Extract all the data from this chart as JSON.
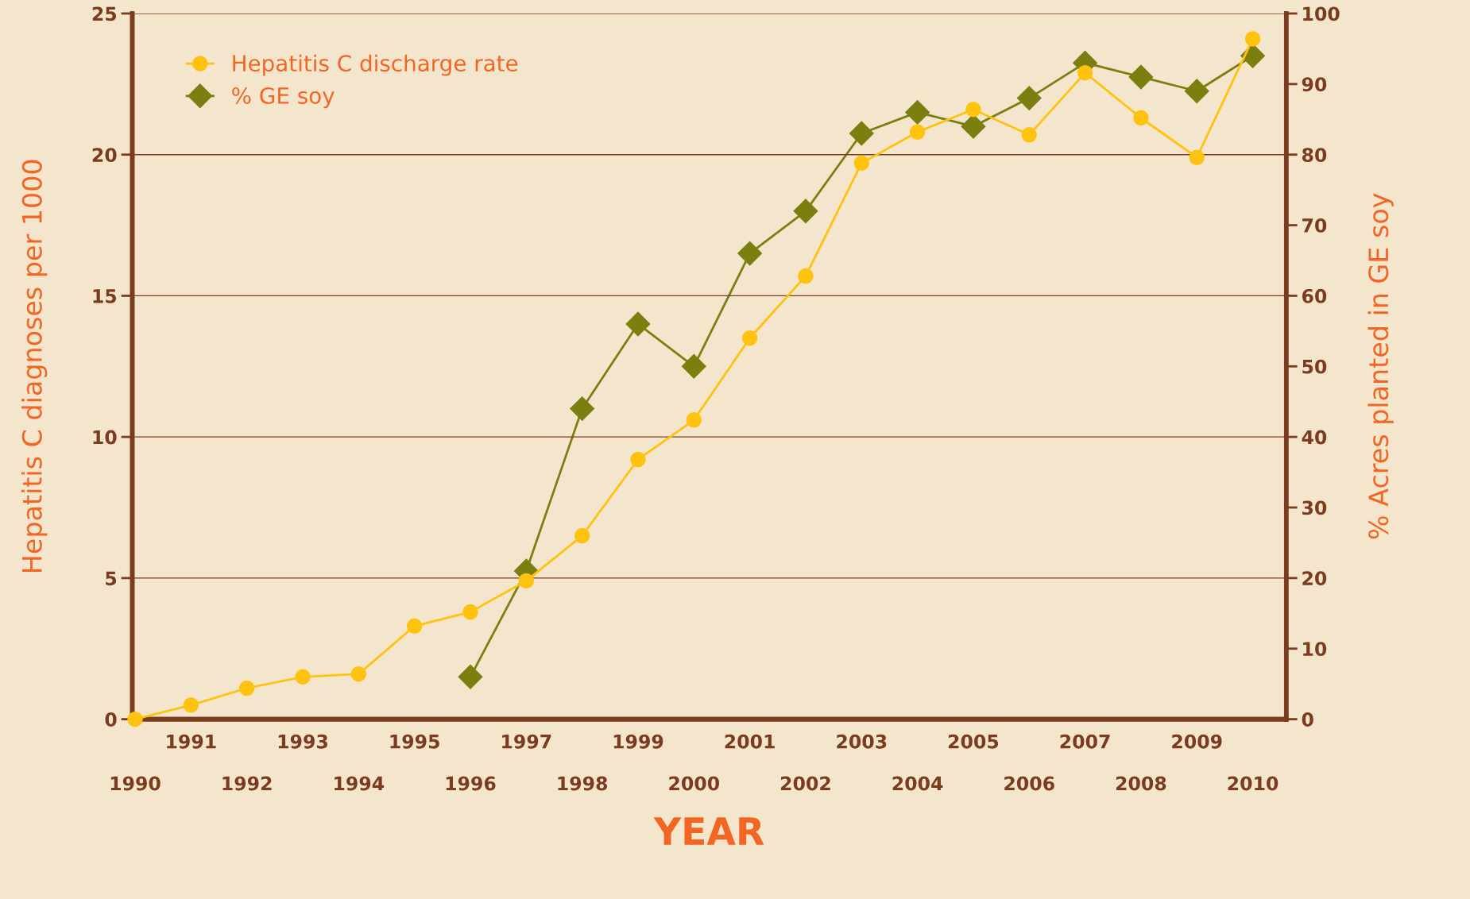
{
  "chart_data": {
    "type": "line",
    "xlabel": "YEAR",
    "ylabel": "Hepatitis C diagnoses per 1000",
    "y2label": "% Acres planted in GE soy",
    "categories": [
      "1990",
      "1991",
      "1992",
      "1993",
      "1994",
      "1995",
      "1996",
      "1997",
      "1998",
      "1999",
      "2000",
      "2001",
      "2002",
      "2003",
      "2004",
      "2005",
      "2006",
      "2007",
      "2008",
      "2009",
      "2010"
    ],
    "series": [
      {
        "name": "Hepatitis C discharge rate",
        "color": "#ffc20e",
        "marker": "circle",
        "values": [
          0,
          0.5,
          1.1,
          1.5,
          1.6,
          3.3,
          3.8,
          4.9,
          6.5,
          9.2,
          10.6,
          13.5,
          15.7,
          19.7,
          20.8,
          21.6,
          20.7,
          22.9,
          21.3,
          19.9,
          24.1
        ]
      },
      {
        "name": "% GE soy",
        "color": "#7a7f10",
        "marker": "diamond",
        "axis": "y2",
        "values": [
          null,
          null,
          null,
          null,
          null,
          null,
          6,
          21,
          44,
          56,
          50,
          66,
          72,
          83,
          86,
          84,
          88,
          93,
          91,
          89,
          94
        ]
      }
    ],
    "ylim": [
      0,
      25
    ],
    "yticks": [
      0,
      5,
      10,
      15,
      20,
      25
    ],
    "y2lim": [
      0,
      100
    ],
    "y2ticks": [
      0,
      10,
      20,
      30,
      40,
      50,
      60,
      70,
      80,
      90,
      100
    ],
    "grid": "y",
    "legend": "top left"
  }
}
